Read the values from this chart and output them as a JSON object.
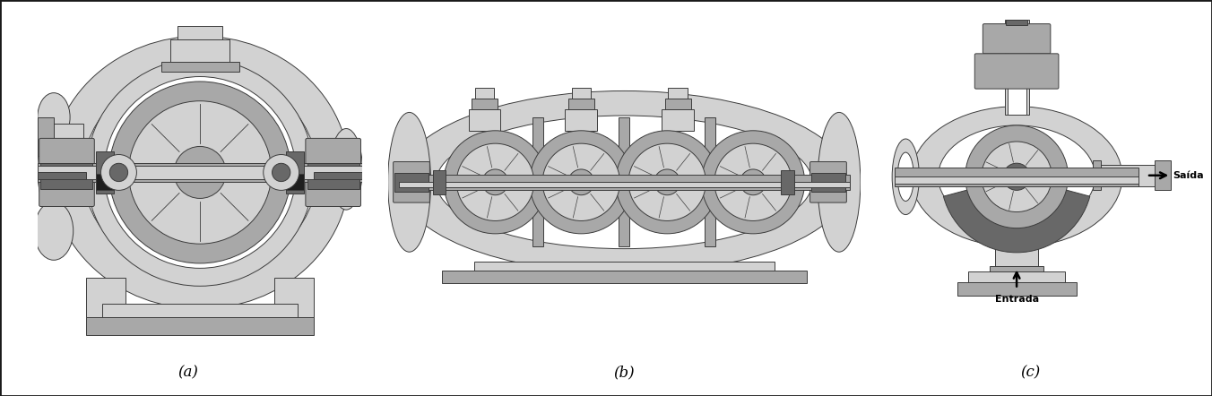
{
  "figure_width": 13.52,
  "figure_height": 4.42,
  "dpi": 100,
  "background_color": "#ffffff",
  "border_color": "#1a1a1a",
  "border_linewidth": 2.0,
  "labels": [
    "(a)",
    "(b)",
    "(c)"
  ],
  "label_fontsize": 12,
  "label_style": "italic",
  "saida_text": "Saída",
  "entrada_text": "Entrada",
  "annotation_fontsize": 9,
  "pump_gray_light": "#d2d2d2",
  "pump_gray_mid": "#a8a8a8",
  "pump_gray_dark": "#686868",
  "pump_gray_darker": "#3c3c3c",
  "pump_gray_darkest": "#1e1e1e",
  "white": "#ffffff",
  "panel_a_xlim": [
    0,
    10
  ],
  "panel_a_ylim": [
    0,
    10
  ],
  "panel_b_xlim": [
    0,
    22
  ],
  "panel_b_ylim": [
    0,
    10
  ],
  "panel_c_xlim": [
    0,
    11
  ],
  "panel_c_ylim": [
    0,
    12
  ]
}
